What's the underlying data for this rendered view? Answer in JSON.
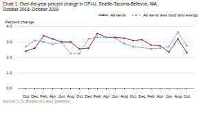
{
  "chart_data": {
    "type": "line",
    "title": "Chart 1. Over-the-year percent change in CPI-U, Seattle-Tacoma-Bellevue, WA,",
    "subtitle": "October 2016–October  2019",
    "y_label": "Percent change",
    "caption": "Source: U.S. Bureau of Labor Statistics.",
    "categories": [
      "Oct\n'16",
      "Dec",
      "Feb",
      "Apr",
      "Jun",
      "Aug",
      "Oct\n'17",
      "Dec",
      "Feb",
      "Apr",
      "Jun",
      "Aug",
      "Oct\n'18",
      "Dec",
      "Feb",
      "Apr",
      "Jun",
      "Aug",
      "Oct\n'19"
    ],
    "series": [
      {
        "name": "All items",
        "color": "#8B1A4A",
        "line_style": "solid",
        "marker": "circle",
        "values": [
          2.4,
          2.6,
          3.4,
          3.2,
          3.0,
          3.0,
          2.55,
          2.6,
          3.55,
          3.3,
          3.3,
          3.25,
          3.1,
          3.15,
          2.8,
          2.75,
          2.35,
          3.2,
          2.3
        ]
      },
      {
        "name": "All items less food and energy",
        "color": "#5B9BD5",
        "line_style": "dashed",
        "marker": "circle",
        "values": [
          2.7,
          3.1,
          3.0,
          2.85,
          2.95,
          2.25,
          2.25,
          3.2,
          3.3,
          3.3,
          3.25,
          2.9,
          2.7,
          2.65,
          2.55,
          2.6,
          2.7,
          3.65,
          2.75
        ]
      }
    ],
    "ylim": [
      0.0,
      4.0
    ],
    "yticks": [
      {
        "value": 0,
        "label": "0.0"
      },
      {
        "value": 1,
        "label": "1.0"
      },
      {
        "value": 2,
        "label": "2.0"
      },
      {
        "value": 3,
        "label": "3.0"
      },
      {
        "value": 4,
        "label": "4.0"
      }
    ],
    "grid": true,
    "legend": "top"
  }
}
